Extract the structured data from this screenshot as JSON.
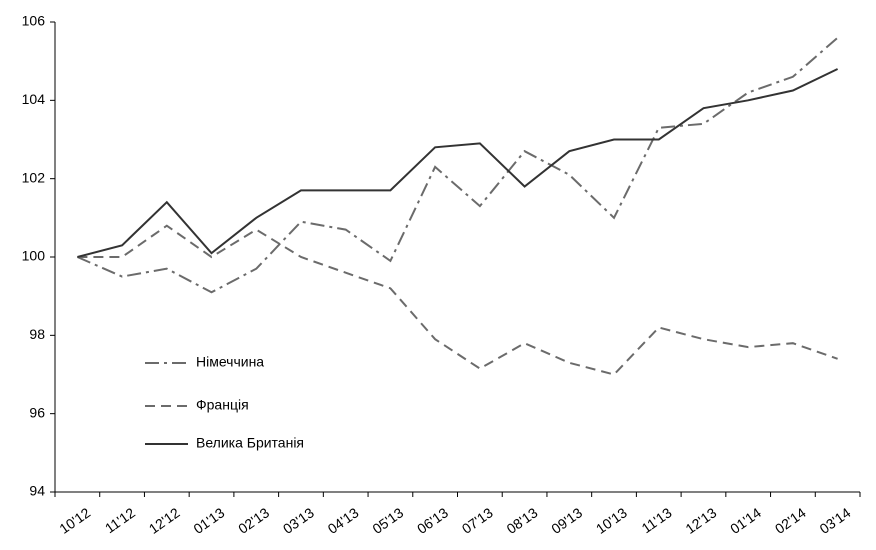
{
  "chart_data": {
    "type": "line",
    "categories": [
      "10'12",
      "11'12",
      "12'12",
      "01'13",
      "02'13",
      "03'13",
      "04'13",
      "05'13",
      "06'13",
      "07'13",
      "08'13",
      "09'13",
      "10'13",
      "11'13",
      "12'13",
      "01'14",
      "02'14",
      "03'14"
    ],
    "series": [
      {
        "name": "Німеччина",
        "color": "#6b6b6b",
        "style": "dash-dot",
        "values": [
          100,
          99.5,
          99.7,
          99.1,
          99.7,
          100.9,
          100.7,
          99.9,
          102.3,
          101.3,
          102.7,
          102.1,
          101.0,
          103.3,
          103.4,
          104.2,
          104.6,
          105.6
        ]
      },
      {
        "name": "Франція",
        "color": "#6b6b6b",
        "style": "dash",
        "values": [
          100,
          100,
          100.8,
          100,
          100.7,
          100,
          99.6,
          99.2,
          97.9,
          97.15,
          97.8,
          97.3,
          97.0,
          98.2,
          97.9,
          97.7,
          97.8,
          97.4
        ]
      },
      {
        "name": "Велика Британія",
        "color": "#333333",
        "style": "solid",
        "values": [
          100,
          100.3,
          101.4,
          100.1,
          101.0,
          101.7,
          101.7,
          101.7,
          102.8,
          102.9,
          101.8,
          102.7,
          103.0,
          103.0,
          103.8,
          104.0,
          104.25,
          104.8
        ]
      }
    ],
    "ylim": [
      94,
      106
    ],
    "yticks": [
      94,
      96,
      98,
      100,
      102,
      104,
      106
    ],
    "grid": false
  }
}
